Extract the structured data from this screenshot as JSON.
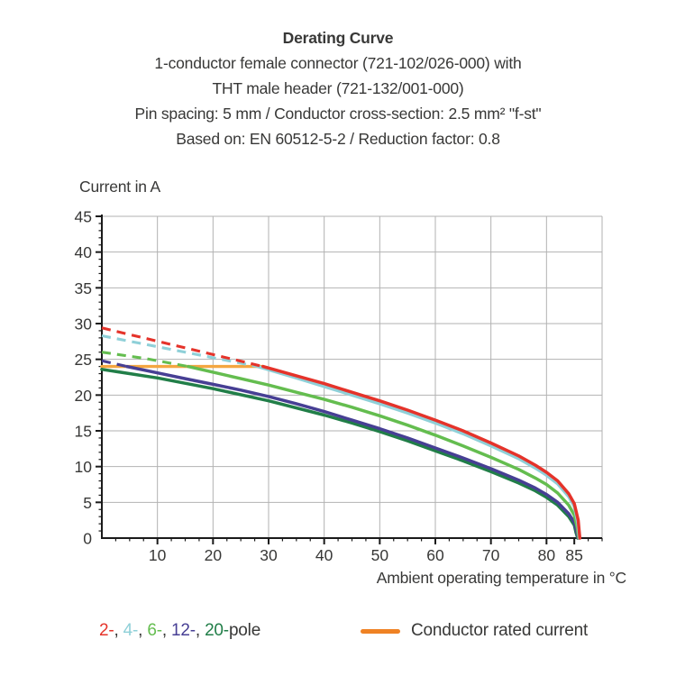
{
  "title": {
    "line1": "Derating Curve",
    "line2": "1-conductor female connector (721-102/026-000) with",
    "line3": "THT male header (721-132/001-000)",
    "line4": "Pin spacing: 5 mm / Conductor cross-section: 2.5 mm² \"f-st\"",
    "line5": "Based on: EN 60512-5-2 / Reduction factor: 0.8"
  },
  "y_axis": {
    "title": "Current in A",
    "tick_labels": [
      0,
      5,
      10,
      15,
      20,
      25,
      30,
      35,
      40,
      45
    ],
    "range": [
      0,
      45
    ]
  },
  "x_axis": {
    "title": "Ambient operating temperature in °C",
    "tick_labels": [
      10,
      20,
      30,
      40,
      50,
      60,
      70,
      80,
      85
    ],
    "gridlines": [
      10,
      20,
      30,
      40,
      50,
      60,
      70,
      80,
      90
    ],
    "range": [
      0,
      90
    ]
  },
  "colors": {
    "axis": "#1a1a1a",
    "grid": "#b2b2b2",
    "text": "#383837",
    "rated_line": "#f4a641",
    "legend_rated_swatch": "#ef8224"
  },
  "legend": {
    "pole_items": [
      {
        "label": "2-",
        "color": "#e5332a"
      },
      {
        "label": "4-",
        "color": "#8fd0d8"
      },
      {
        "label": "6-",
        "color": "#64bd4f"
      },
      {
        "label": "12-",
        "color": "#473f94"
      },
      {
        "label": "20-",
        "color": "#217e48"
      }
    ],
    "separator": ", ",
    "suffix": "pole",
    "rated_label": "Conductor rated current"
  },
  "chart_data": {
    "type": "line",
    "xlabel": "Ambient operating temperature in °C",
    "ylabel": "Current in A",
    "xlim": [
      0,
      90
    ],
    "ylim": [
      0,
      45
    ],
    "grid": true,
    "rated_line": {
      "name": "Conductor rated current",
      "value": 24,
      "from": 0,
      "to": 29,
      "color": "#f4a641"
    },
    "series": [
      {
        "name": "20-pole",
        "color": "#217e48",
        "dashed": [],
        "solid": [
          [
            0,
            23.6
          ],
          [
            10,
            22.4
          ],
          [
            20,
            20.9
          ],
          [
            30,
            19.2
          ],
          [
            40,
            17.2
          ],
          [
            45,
            16.1
          ],
          [
            50,
            14.9
          ],
          [
            55,
            13.6
          ],
          [
            60,
            12.2
          ],
          [
            65,
            10.8
          ],
          [
            70,
            9.3
          ],
          [
            75,
            7.7
          ],
          [
            78,
            6.6
          ],
          [
            80,
            5.7
          ],
          [
            82,
            4.6
          ],
          [
            84,
            3.0
          ],
          [
            85,
            1.8
          ],
          [
            85.3,
            0.8
          ],
          [
            85.6,
            0
          ]
        ]
      },
      {
        "name": "12-pole",
        "color": "#473f94",
        "dashed": [
          [
            0,
            24.8
          ],
          [
            4.5,
            24.0
          ]
        ],
        "solid": [
          [
            4.5,
            24.0
          ],
          [
            10,
            23.1
          ],
          [
            15,
            22.3
          ],
          [
            20,
            21.5
          ],
          [
            25,
            20.7
          ],
          [
            30,
            19.8
          ],
          [
            35,
            18.8
          ],
          [
            40,
            17.7
          ],
          [
            45,
            16.5
          ],
          [
            50,
            15.3
          ],
          [
            55,
            14.0
          ],
          [
            60,
            12.6
          ],
          [
            65,
            11.2
          ],
          [
            70,
            9.7
          ],
          [
            75,
            8.1
          ],
          [
            78,
            7.0
          ],
          [
            80,
            6.1
          ],
          [
            82,
            5.0
          ],
          [
            84,
            3.4
          ],
          [
            85,
            2.2
          ],
          [
            85.4,
            1.0
          ],
          [
            85.7,
            0
          ]
        ]
      },
      {
        "name": "6-pole",
        "color": "#64bd4f",
        "dashed": [
          [
            0,
            26.0
          ],
          [
            8,
            25.1
          ],
          [
            15.5,
            24.0
          ]
        ],
        "solid": [
          [
            15.5,
            24.0
          ],
          [
            20,
            23.2
          ],
          [
            25,
            22.3
          ],
          [
            30,
            21.4
          ],
          [
            35,
            20.4
          ],
          [
            40,
            19.4
          ],
          [
            45,
            18.3
          ],
          [
            50,
            17.1
          ],
          [
            55,
            15.8
          ],
          [
            60,
            14.4
          ],
          [
            65,
            12.9
          ],
          [
            70,
            11.3
          ],
          [
            75,
            9.6
          ],
          [
            78,
            8.4
          ],
          [
            80,
            7.5
          ],
          [
            82,
            6.3
          ],
          [
            84,
            4.6
          ],
          [
            85,
            3.2
          ],
          [
            85.5,
            1.5
          ],
          [
            85.8,
            0
          ]
        ]
      },
      {
        "name": "4-pole",
        "color": "#8fd0d8",
        "dashed": [
          [
            0,
            28.3
          ],
          [
            28,
            24.0
          ]
        ],
        "solid": [
          [
            28,
            24.0
          ],
          [
            35,
            22.4
          ],
          [
            40,
            21.2
          ],
          [
            45,
            20.0
          ],
          [
            50,
            18.8
          ],
          [
            55,
            17.5
          ],
          [
            60,
            16.1
          ],
          [
            65,
            14.6
          ],
          [
            70,
            12.9
          ],
          [
            75,
            11.1
          ],
          [
            78,
            9.8
          ],
          [
            80,
            8.8
          ],
          [
            82,
            7.6
          ],
          [
            84,
            5.8
          ],
          [
            85,
            4.4
          ],
          [
            85.6,
            2.2
          ],
          [
            85.9,
            0
          ]
        ]
      },
      {
        "name": "2-pole",
        "color": "#e5332a",
        "dashed": [
          [
            0,
            29.4
          ],
          [
            29,
            24.0
          ]
        ],
        "solid": [
          [
            29,
            24.0
          ],
          [
            35,
            22.7
          ],
          [
            40,
            21.6
          ],
          [
            45,
            20.4
          ],
          [
            50,
            19.2
          ],
          [
            55,
            17.9
          ],
          [
            60,
            16.5
          ],
          [
            65,
            15.0
          ],
          [
            70,
            13.3
          ],
          [
            75,
            11.5
          ],
          [
            78,
            10.2
          ],
          [
            80,
            9.2
          ],
          [
            82,
            8.0
          ],
          [
            84,
            6.2
          ],
          [
            85,
            4.8
          ],
          [
            85.7,
            2.5
          ],
          [
            86,
            0
          ]
        ]
      }
    ]
  }
}
